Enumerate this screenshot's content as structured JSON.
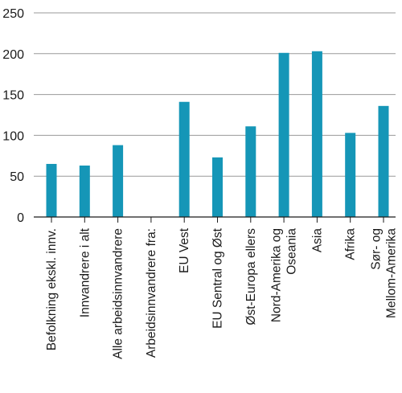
{
  "chart_data": {
    "type": "bar",
    "title": "",
    "xlabel": "",
    "ylabel": "",
    "ylim": [
      0,
      250
    ],
    "yticks": [
      0,
      50,
      100,
      150,
      200,
      250
    ],
    "grid": true,
    "legend": "none",
    "bar_color": "#1596b7",
    "categories": [
      [
        "Befolkning ekskl. innv."
      ],
      [
        "Innvandrere i alt"
      ],
      [
        "Alle arbeidsinnvandrere"
      ],
      [
        "Arbeidsinnvandrere fra:"
      ],
      [
        "EU Vest"
      ],
      [
        "EU Sentral og Øst"
      ],
      [
        "Øst-Europa ellers"
      ],
      [
        "Nord-Amerika og",
        "Oseania"
      ],
      [
        "Asia"
      ],
      [
        "Afrika"
      ],
      [
        "Sør- og",
        "Mellom-Amerika"
      ]
    ],
    "values": [
      65,
      63,
      88,
      null,
      141,
      73,
      111,
      201,
      203,
      103,
      136
    ]
  }
}
